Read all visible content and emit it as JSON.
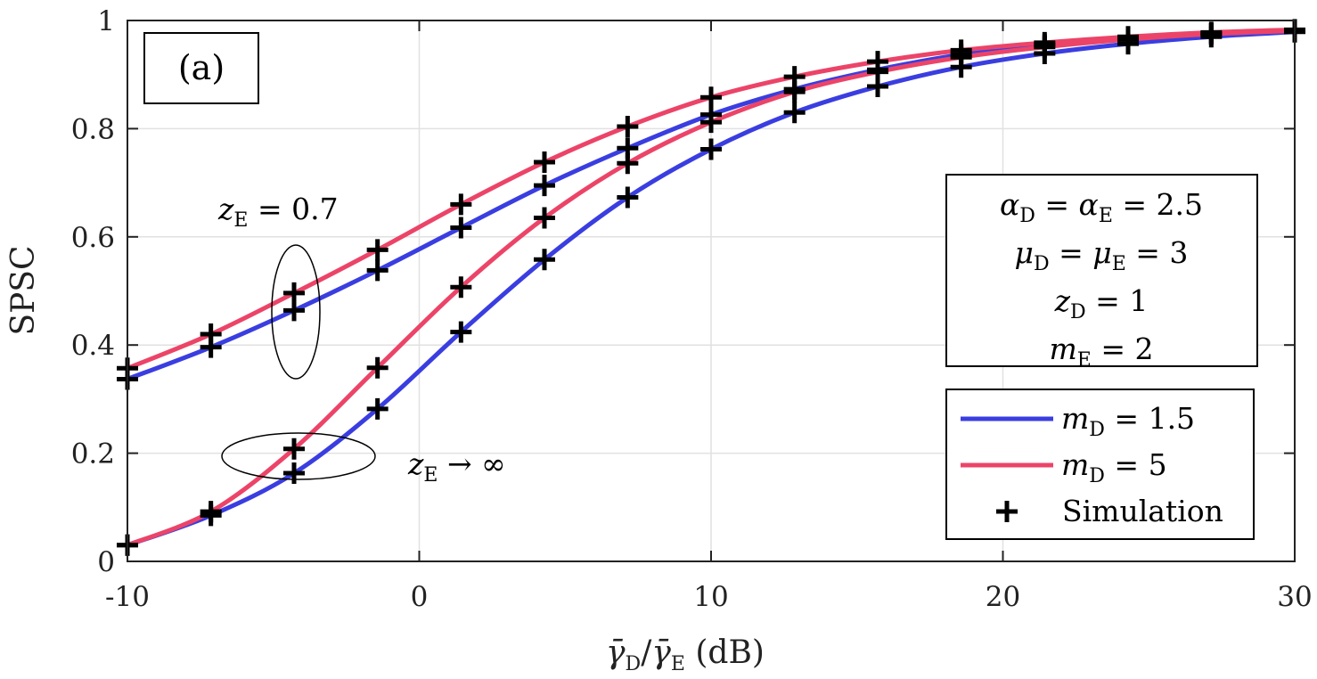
{
  "chart_data": {
    "type": "line",
    "panel_label": "(a)",
    "xlabel_parts": [
      "γ̄",
      "D",
      "/",
      "γ̄",
      "E",
      " (dB)"
    ],
    "ylabel": "SPSC",
    "xlim": [
      -10,
      30
    ],
    "ylim": [
      0,
      1
    ],
    "xticks": [
      -10,
      0,
      10,
      20,
      30
    ],
    "xtick_labels": [
      "-10",
      "0",
      "10",
      "20",
      "30"
    ],
    "yticks": [
      0,
      0.2,
      0.4,
      0.6,
      0.8,
      1
    ],
    "ytick_labels": [
      "0",
      "0.2",
      "0.4",
      "0.6",
      "0.8",
      "1"
    ],
    "grid": true,
    "colors": {
      "blue": "#3a3ee0",
      "red": "#ec4468",
      "marker": "#000000"
    },
    "x": [
      -10,
      -7.14,
      -4.29,
      -1.43,
      1.43,
      4.29,
      7.14,
      10,
      12.86,
      15.71,
      18.57,
      21.43,
      24.29,
      27.14,
      30
    ],
    "series": [
      {
        "name": "m_D = 1.5, z_E = 0.7",
        "group": "zE07",
        "color_key": "blue",
        "values": [
          0.337,
          0.396,
          0.464,
          0.538,
          0.617,
          0.695,
          0.764,
          0.826,
          0.873,
          0.909,
          0.937,
          0.955,
          0.968,
          0.976,
          0.982
        ]
      },
      {
        "name": "m_D = 5, z_E = 0.7",
        "group": "zE07",
        "color_key": "red",
        "values": [
          0.357,
          0.42,
          0.496,
          0.576,
          0.66,
          0.738,
          0.804,
          0.858,
          0.896,
          0.924,
          0.945,
          0.959,
          0.97,
          0.978,
          0.983
        ]
      },
      {
        "name": "m_D = 1.5, z_E → ∞",
        "group": "zEinf",
        "color_key": "blue",
        "values": [
          0.03,
          0.085,
          0.163,
          0.282,
          0.424,
          0.558,
          0.673,
          0.762,
          0.83,
          0.878,
          0.914,
          0.939,
          0.957,
          0.97,
          0.979
        ]
      },
      {
        "name": "m_D = 5, z_E → ∞",
        "group": "zEinf",
        "color_key": "red",
        "values": [
          0.03,
          0.092,
          0.208,
          0.358,
          0.507,
          0.635,
          0.736,
          0.812,
          0.868,
          0.905,
          0.932,
          0.951,
          0.965,
          0.975,
          0.981
        ]
      }
    ],
    "simulation_x": [
      -10,
      -7.14,
      -4.29,
      -1.43,
      1.43,
      4.29,
      7.14,
      10,
      12.86,
      15.71,
      18.57,
      21.43,
      24.29,
      27.14,
      30
    ],
    "annotations": {
      "z07": {
        "sym": "z",
        "sub": "E",
        "rest": " = 0.7"
      },
      "zinf": {
        "sym": "z",
        "sub": "E",
        "rest": " → ∞"
      }
    },
    "param_box": [
      {
        "a": "α",
        "as": "D",
        "b": " = α",
        "bs": "E",
        "c": " = 2.5"
      },
      {
        "a": "μ",
        "as": "D",
        "b": " = μ",
        "bs": "E",
        "c": " = 3"
      },
      {
        "a": "z",
        "as": "D",
        "b": " = 1",
        "bs": "",
        "c": ""
      },
      {
        "a": "m",
        "as": "E",
        "b": " = 2",
        "bs": "",
        "c": ""
      }
    ],
    "legend": {
      "position": "bottom-right",
      "entries": [
        {
          "sym": "m",
          "sub": "D",
          "rest": " = 1.5",
          "color_key": "blue",
          "kind": "line"
        },
        {
          "sym": "m",
          "sub": "D",
          "rest": " = 5",
          "color_key": "red",
          "kind": "line"
        },
        {
          "label": "Simulation",
          "color_key": "marker",
          "kind": "marker"
        }
      ]
    }
  }
}
